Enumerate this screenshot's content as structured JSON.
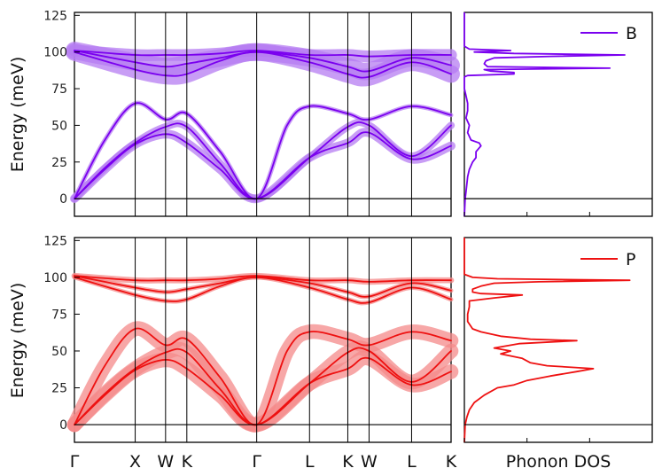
{
  "chart_data": [
    {
      "type": "line",
      "panel": "dispersion",
      "atom": "B",
      "ylabel": "Energy (meV)",
      "ylim": [
        -12,
        127
      ],
      "yticks": [
        0,
        25,
        50,
        75,
        100,
        125
      ],
      "color": "#7a00ef",
      "band_color": "#b67cf2",
      "kpath": [
        {
          "label": "Γ",
          "x": 0
        },
        {
          "label": "X",
          "x": 1
        },
        {
          "label": "W",
          "x": 1.5
        },
        {
          "label": "K",
          "x": 1.85
        },
        {
          "label": "Γ",
          "x": 3
        },
        {
          "label": "L",
          "x": 3.87
        },
        {
          "label": "K",
          "x": 4.5
        },
        {
          "label": "W",
          "x": 4.85
        },
        {
          "label": "L",
          "x": 5.55
        },
        {
          "label": "K",
          "x": 6.2
        }
      ],
      "series": [
        {
          "x": [
            0,
            0.5,
            1,
            1.5,
            1.85,
            2.4,
            3,
            3.87,
            4.5,
            4.85,
            5.55,
            6.2
          ],
          "y": [
            0,
            20,
            37,
            44,
            38,
            20,
            0,
            28,
            38,
            45,
            27,
            36
          ],
          "width": 6
        },
        {
          "x": [
            0,
            0.5,
            1,
            1.5,
            1.85,
            2.4,
            3,
            3.87,
            4.5,
            4.85,
            5.55,
            6.2
          ],
          "y": [
            0,
            21,
            38,
            49,
            49,
            24,
            0,
            28,
            49,
            50,
            29,
            50
          ],
          "width": 5
        },
        {
          "x": [
            0,
            0.5,
            1,
            1.5,
            1.85,
            2.4,
            3,
            3.5,
            3.87,
            4.5,
            4.85,
            5.55,
            6.2
          ],
          "y": [
            0,
            40,
            65,
            54,
            58,
            32,
            0,
            50,
            63,
            58,
            54,
            63,
            57
          ],
          "width": 3
        },
        {
          "x": [
            0,
            1,
            1.5,
            1.85,
            2.4,
            3,
            3.87,
            4.5,
            4.85,
            5.55,
            6.2
          ],
          "y": [
            100,
            88,
            84,
            85,
            94,
            100,
            93,
            85,
            83,
            93,
            85
          ],
          "width": 12
        },
        {
          "x": [
            0,
            1,
            1.5,
            1.85,
            2.4,
            3,
            3.87,
            4.5,
            4.85,
            5.55,
            6.2
          ],
          "y": [
            101,
            93,
            90,
            92,
            96,
            100,
            96,
            90,
            87,
            96,
            91
          ],
          "width": 12
        },
        {
          "x": [
            0,
            1,
            1.5,
            1.85,
            2.4,
            3,
            3.87,
            4.5,
            4.85,
            5.55,
            6.2
          ],
          "y": [
            101,
            98,
            98,
            98,
            99,
            101,
            98,
            98,
            97,
            98,
            98
          ],
          "width": 8
        }
      ]
    },
    {
      "type": "line",
      "panel": "dispersion",
      "atom": "P",
      "ylabel": "Energy (meV)",
      "ylim": [
        -12,
        127
      ],
      "yticks": [
        0,
        25,
        50,
        75,
        100,
        125
      ],
      "color": "#ee1111",
      "band_color": "#f48a8a",
      "series": [
        {
          "x": [
            0,
            0.5,
            1,
            1.5,
            1.85,
            2.4,
            3,
            3.87,
            4.5,
            4.85,
            5.55,
            6.2
          ],
          "y": [
            0,
            20,
            37,
            44,
            38,
            20,
            0,
            28,
            38,
            45,
            27,
            36
          ],
          "width": 10
        },
        {
          "x": [
            0,
            0.5,
            1,
            1.5,
            1.85,
            2.4,
            3,
            3.87,
            4.5,
            4.85,
            5.55,
            6.2
          ],
          "y": [
            0,
            21,
            38,
            49,
            49,
            24,
            0,
            28,
            49,
            50,
            29,
            50
          ],
          "width": 10
        },
        {
          "x": [
            0,
            0.5,
            1,
            1.5,
            1.85,
            2.4,
            3,
            3.5,
            3.87,
            4.5,
            4.85,
            5.55,
            6.2
          ],
          "y": [
            0,
            40,
            65,
            54,
            58,
            32,
            0,
            50,
            63,
            58,
            54,
            63,
            57
          ],
          "width": 10
        },
        {
          "x": [
            0,
            1,
            1.5,
            1.85,
            2.4,
            3,
            3.87,
            4.5,
            4.85,
            5.55,
            6.2
          ],
          "y": [
            100,
            88,
            84,
            85,
            94,
            100,
            93,
            85,
            83,
            93,
            85
          ],
          "width": 3
        },
        {
          "x": [
            0,
            1,
            1.5,
            1.85,
            2.4,
            3,
            3.87,
            4.5,
            4.85,
            5.55,
            6.2
          ],
          "y": [
            101,
            93,
            90,
            92,
            96,
            100,
            96,
            90,
            87,
            96,
            91
          ],
          "width": 3
        },
        {
          "x": [
            0,
            1,
            1.5,
            1.85,
            2.4,
            3,
            3.87,
            4.5,
            4.85,
            5.55,
            6.2
          ],
          "y": [
            101,
            98,
            98,
            98,
            99,
            101,
            98,
            98,
            97,
            98,
            98
          ],
          "width": 4
        }
      ]
    },
    {
      "type": "line",
      "panel": "dos",
      "legend": "B",
      "legend_position": "top-right",
      "color": "#7a00ef",
      "energy": [
        -12,
        0,
        5,
        10,
        15,
        20,
        25,
        28,
        32,
        36,
        38,
        40,
        45,
        50,
        55,
        60,
        65,
        70,
        75,
        80,
        83,
        84,
        85,
        86,
        87,
        88,
        89,
        90,
        92,
        94,
        96,
        97,
        98,
        99,
        100,
        101,
        102,
        104,
        110,
        127
      ],
      "dos": [
        0,
        0.005,
        0.01,
        0.015,
        0.02,
        0.03,
        0.05,
        0.07,
        0.07,
        0.1,
        0.09,
        0.04,
        0.02,
        0.03,
        0.01,
        0.02,
        0.02,
        0.01,
        0.0,
        0.0,
        0.0,
        0.02,
        0.3,
        0.3,
        0.16,
        0.12,
        0.88,
        0.14,
        0.12,
        0.13,
        0.18,
        0.52,
        0.97,
        0.3,
        0.06,
        0.28,
        0.03,
        0.0,
        0.0,
        0.0
      ]
    },
    {
      "type": "line",
      "panel": "dos",
      "legend": "P",
      "legend_position": "top-right",
      "xlabel": "Phonon DOS",
      "color": "#ee1111",
      "energy": [
        -12,
        0,
        5,
        10,
        15,
        20,
        25,
        27,
        30,
        33,
        36,
        38,
        40,
        42,
        45,
        48,
        50,
        52,
        55,
        57,
        58,
        60,
        63,
        65,
        70,
        75,
        80,
        84,
        86,
        88,
        89,
        90,
        92,
        94,
        96,
        97,
        98,
        99,
        100,
        102,
        127
      ],
      "dos": [
        0,
        0.005,
        0.015,
        0.03,
        0.06,
        0.12,
        0.2,
        0.3,
        0.38,
        0.52,
        0.68,
        0.78,
        0.5,
        0.4,
        0.35,
        0.22,
        0.28,
        0.18,
        0.33,
        0.68,
        0.4,
        0.22,
        0.1,
        0.05,
        0.02,
        0.02,
        0.03,
        0.03,
        0.18,
        0.35,
        0.1,
        0.05,
        0.05,
        0.1,
        0.18,
        0.45,
        1.0,
        0.2,
        0.05,
        0.0,
        0.0
      ]
    }
  ]
}
